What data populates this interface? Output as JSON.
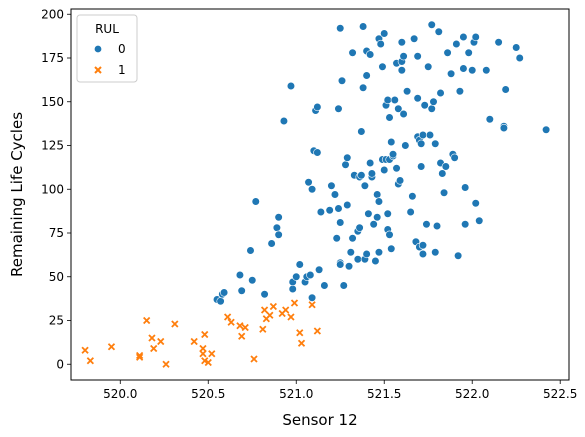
{
  "chart_data": {
    "type": "scatter",
    "xlabel": "Sensor 12",
    "ylabel": "Remaining Life Cycles",
    "xlim": [
      519.72,
      522.55
    ],
    "ylim": [
      -9,
      203
    ],
    "xticks": [
      "520.0",
      "520.5",
      "521.0",
      "521.5",
      "522.0",
      "522.5"
    ],
    "xtick_values": [
      520.0,
      520.5,
      521.0,
      521.5,
      522.0,
      522.5
    ],
    "yticks": [
      "0",
      "25",
      "50",
      "75",
      "100",
      "125",
      "150",
      "175",
      "200"
    ],
    "ytick_values": [
      0,
      25,
      50,
      75,
      100,
      125,
      150,
      175,
      200
    ],
    "grid": false,
    "legend": {
      "title": "RUL",
      "placement": "top-left"
    },
    "series": [
      {
        "name": "0",
        "marker": "circle",
        "color": "#1f77b4",
        "points": [
          [
            520.55,
            37
          ],
          [
            520.57,
            36
          ],
          [
            520.58,
            40
          ],
          [
            520.59,
            41
          ],
          [
            520.68,
            51
          ],
          [
            520.69,
            42
          ],
          [
            520.74,
            65
          ],
          [
            520.75,
            48
          ],
          [
            520.77,
            93
          ],
          [
            520.82,
            40
          ],
          [
            520.86,
            69
          ],
          [
            520.89,
            78
          ],
          [
            520.9,
            84
          ],
          [
            520.9,
            74
          ],
          [
            520.93,
            139
          ],
          [
            520.97,
            159
          ],
          [
            520.98,
            43
          ],
          [
            520.98,
            47
          ],
          [
            521.0,
            50
          ],
          [
            521.02,
            57
          ],
          [
            521.05,
            47
          ],
          [
            521.06,
            50
          ],
          [
            521.07,
            104
          ],
          [
            521.08,
            51
          ],
          [
            521.09,
            38
          ],
          [
            521.09,
            100
          ],
          [
            521.1,
            122
          ],
          [
            521.11,
            145
          ],
          [
            521.12,
            147
          ],
          [
            521.12,
            121
          ],
          [
            521.13,
            54
          ],
          [
            521.14,
            87
          ],
          [
            521.16,
            45
          ],
          [
            521.19,
            88
          ],
          [
            521.2,
            102
          ],
          [
            521.22,
            97
          ],
          [
            521.23,
            72
          ],
          [
            521.24,
            89
          ],
          [
            521.24,
            146
          ],
          [
            521.25,
            58
          ],
          [
            521.25,
            81
          ],
          [
            521.25,
            192
          ],
          [
            521.25,
            57
          ],
          [
            521.26,
            162
          ],
          [
            521.27,
            45
          ],
          [
            521.28,
            114
          ],
          [
            521.29,
            118
          ],
          [
            521.29,
            91
          ],
          [
            521.3,
            56
          ],
          [
            521.31,
            64
          ],
          [
            521.32,
            72
          ],
          [
            521.32,
            178
          ],
          [
            521.33,
            108
          ],
          [
            521.35,
            60
          ],
          [
            521.35,
            76
          ],
          [
            521.36,
            107
          ],
          [
            521.36,
            78
          ],
          [
            521.37,
            108
          ],
          [
            521.37,
            133
          ],
          [
            521.38,
            193
          ],
          [
            521.38,
            158
          ],
          [
            521.39,
            60
          ],
          [
            521.39,
            102
          ],
          [
            521.4,
            63
          ],
          [
            521.4,
            179
          ],
          [
            521.4,
            165
          ],
          [
            521.41,
            86
          ],
          [
            521.42,
            177
          ],
          [
            521.42,
            115
          ],
          [
            521.43,
            107
          ],
          [
            521.43,
            109
          ],
          [
            521.44,
            80
          ],
          [
            521.45,
            59
          ],
          [
            521.46,
            97
          ],
          [
            521.46,
            84
          ],
          [
            521.47,
            93
          ],
          [
            521.47,
            186
          ],
          [
            521.47,
            64
          ],
          [
            521.48,
            183
          ],
          [
            521.49,
            170
          ],
          [
            521.49,
            117
          ],
          [
            521.5,
            189
          ],
          [
            521.5,
            111
          ],
          [
            521.51,
            148
          ],
          [
            521.51,
            117
          ],
          [
            521.52,
            151
          ],
          [
            521.52,
            77
          ],
          [
            521.52,
            86
          ],
          [
            521.53,
            74
          ],
          [
            521.53,
            141
          ],
          [
            521.53,
            117
          ],
          [
            521.54,
            127
          ],
          [
            521.54,
            66
          ],
          [
            521.55,
            119
          ],
          [
            521.55,
            120
          ],
          [
            521.56,
            151
          ],
          [
            521.57,
            112
          ],
          [
            521.57,
            172
          ],
          [
            521.58,
            146
          ],
          [
            521.58,
            103
          ],
          [
            521.59,
            105
          ],
          [
            521.6,
            168
          ],
          [
            521.6,
            173
          ],
          [
            521.6,
            184
          ],
          [
            521.61,
            143
          ],
          [
            521.61,
            176
          ],
          [
            521.62,
            125
          ],
          [
            521.63,
            156
          ],
          [
            521.65,
            87
          ],
          [
            521.66,
            96
          ],
          [
            521.67,
            186
          ],
          [
            521.68,
            70
          ],
          [
            521.69,
            152
          ],
          [
            521.69,
            130
          ],
          [
            521.69,
            176
          ],
          [
            521.7,
            67
          ],
          [
            521.7,
            128
          ],
          [
            521.71,
            113
          ],
          [
            521.71,
            126
          ],
          [
            521.72,
            131
          ],
          [
            521.72,
            63
          ],
          [
            521.72,
            68
          ],
          [
            521.73,
            148
          ],
          [
            521.74,
            80
          ],
          [
            521.75,
            170
          ],
          [
            521.76,
            131
          ],
          [
            521.77,
            146
          ],
          [
            521.77,
            194
          ],
          [
            521.78,
            150
          ],
          [
            521.79,
            64
          ],
          [
            521.79,
            126
          ],
          [
            521.8,
            79
          ],
          [
            521.81,
            190
          ],
          [
            521.82,
            115
          ],
          [
            521.82,
            155
          ],
          [
            521.83,
            109
          ],
          [
            521.84,
            98
          ],
          [
            521.85,
            113
          ],
          [
            521.86,
            178
          ],
          [
            521.88,
            166
          ],
          [
            521.89,
            120
          ],
          [
            521.9,
            118
          ],
          [
            521.91,
            183
          ],
          [
            521.92,
            62
          ],
          [
            521.93,
            156
          ],
          [
            521.95,
            169
          ],
          [
            521.95,
            187
          ],
          [
            521.96,
            80
          ],
          [
            521.96,
            101
          ],
          [
            521.98,
            178
          ],
          [
            522.0,
            168
          ],
          [
            522.01,
            184
          ],
          [
            522.02,
            92
          ],
          [
            522.02,
            187
          ],
          [
            522.04,
            82
          ],
          [
            522.08,
            168
          ],
          [
            522.1,
            140
          ],
          [
            522.15,
            184
          ],
          [
            522.18,
            136
          ],
          [
            522.18,
            135
          ],
          [
            522.19,
            157
          ],
          [
            522.25,
            181
          ],
          [
            522.27,
            175
          ],
          [
            522.42,
            134
          ]
        ]
      },
      {
        "name": "1",
        "marker": "x",
        "color": "#ff7f0e",
        "points": [
          [
            519.8,
            8
          ],
          [
            519.83,
            2
          ],
          [
            519.95,
            10
          ],
          [
            520.11,
            5
          ],
          [
            520.11,
            4
          ],
          [
            520.15,
            25
          ],
          [
            520.18,
            15
          ],
          [
            520.19,
            9
          ],
          [
            520.23,
            13
          ],
          [
            520.26,
            0
          ],
          [
            520.31,
            23
          ],
          [
            520.42,
            13
          ],
          [
            520.47,
            9
          ],
          [
            520.47,
            6
          ],
          [
            520.48,
            2
          ],
          [
            520.48,
            17
          ],
          [
            520.5,
            1
          ],
          [
            520.52,
            6
          ],
          [
            520.61,
            27
          ],
          [
            520.63,
            24
          ],
          [
            520.68,
            22
          ],
          [
            520.69,
            16
          ],
          [
            520.71,
            21
          ],
          [
            520.76,
            3
          ],
          [
            520.81,
            20
          ],
          [
            520.82,
            31
          ],
          [
            520.83,
            26
          ],
          [
            520.85,
            28
          ],
          [
            520.87,
            33
          ],
          [
            520.92,
            29
          ],
          [
            520.94,
            31
          ],
          [
            520.97,
            27
          ],
          [
            520.99,
            35
          ],
          [
            521.02,
            18
          ],
          [
            521.03,
            12
          ],
          [
            521.09,
            34
          ],
          [
            521.12,
            19
          ]
        ]
      }
    ]
  }
}
